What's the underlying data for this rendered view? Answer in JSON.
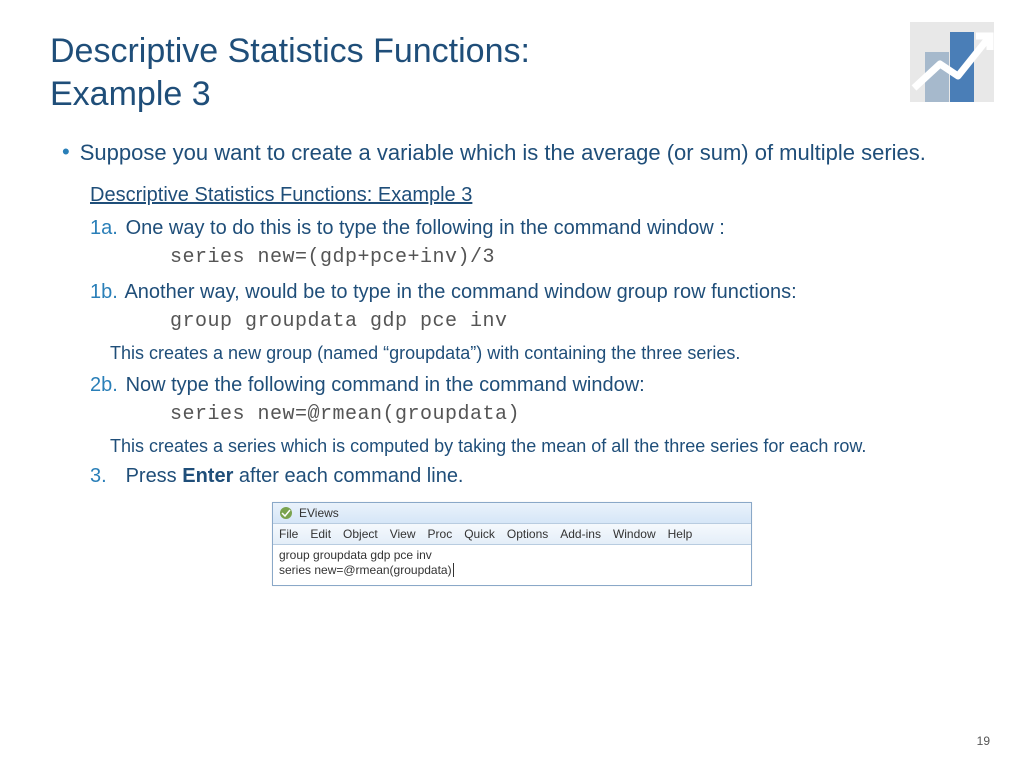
{
  "title": "Descriptive Statistics Functions:\nExample 3",
  "intro_bullet": "Suppose you want to create a variable which is the average (or sum) of multiple series.",
  "subheading": "Descriptive Statistics Functions: Example 3",
  "steps": {
    "s1a_num": "1a.",
    "s1a_text": "One way to do this is to type the following in the command window :",
    "s1a_code": "series new=(gdp+pce+inv)/3",
    "s1b_num": "1b.",
    "s1b_text": "Another way, would be to type in the command window group row functions:",
    "s1b_code": "group groupdata gdp pce inv",
    "note1": "This creates a new group (named “groupdata”) with containing the three series.",
    "s2b_num": "2b.",
    "s2b_text": "Now type the following command in the command window:",
    "s2b_code": "series new=@rmean(groupdata)",
    "note2": "This creates a series  which is computed by taking the mean of all the three series for each row.",
    "s3_num": "3.",
    "s3_pre": "Press ",
    "s3_bold": "Enter",
    "s3_post": " after each command line."
  },
  "eviews": {
    "title": "EViews",
    "menu": [
      "File",
      "Edit",
      "Object",
      "View",
      "Proc",
      "Quick",
      "Options",
      "Add-ins",
      "Window",
      "Help"
    ],
    "line1": "group groupdata gdp pce inv",
    "line2": "series new=@rmean(groupdata)"
  },
  "page_number": "19",
  "colors": {
    "heading": "#1f4e79",
    "accent": "#2a7fb8",
    "code": "#555555",
    "logo_bg": "#e8e8e8",
    "logo_bar1": "#a6b9cc",
    "logo_bar2": "#4a7eb7"
  }
}
